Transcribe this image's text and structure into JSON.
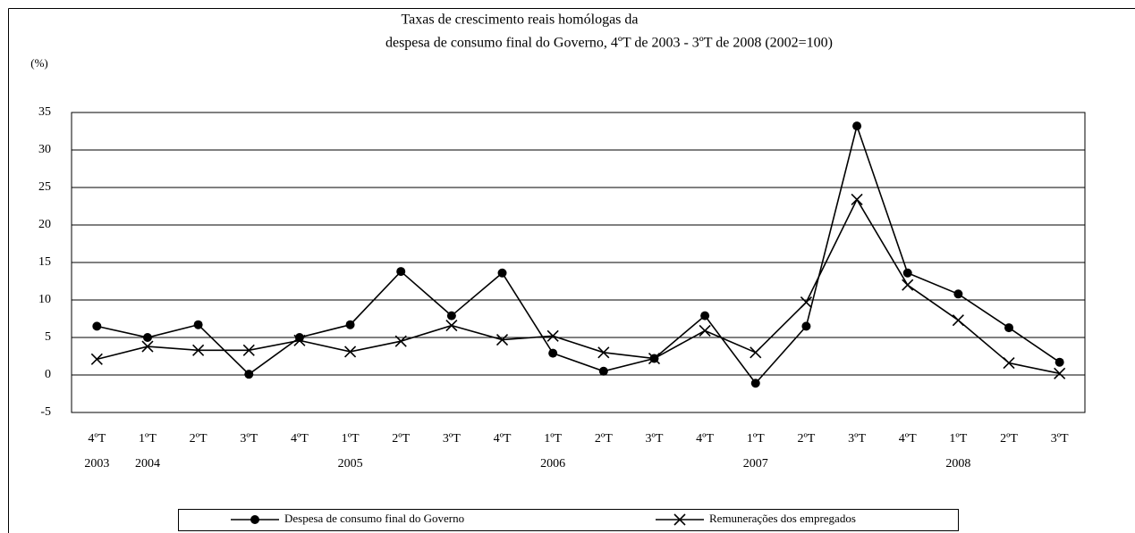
{
  "chart_data": {
    "type": "line",
    "title": "Taxas de crescimento reais homólogas da",
    "subtitle": "despesa de consumo final do Governo, 4ºT de 2003 - 3ºT de 2008 (2002=100)",
    "y_label": "(%)",
    "categories": [
      "4ºT",
      "1ºT",
      "2ºT",
      "3ºT",
      "4ºT",
      "1ºT",
      "2ºT",
      "3ºT",
      "4ºT",
      "1ºT",
      "2ºT",
      "3ºT",
      "4ºT",
      "1ºT",
      "2ºT",
      "3ºT",
      "4ºT",
      "1ºT",
      "2ºT",
      "3ºT"
    ],
    "year_labels": [
      "2003",
      "2004",
      null,
      null,
      null,
      "2005",
      null,
      null,
      null,
      "2006",
      null,
      null,
      null,
      "2007",
      null,
      null,
      null,
      "2008",
      null,
      null
    ],
    "series": [
      {
        "name": "Despesa de consumo final do Governo",
        "color": "#000000",
        "marker": "circle",
        "values": [
          6.5,
          5.0,
          6.7,
          0.1,
          5.0,
          6.7,
          13.8,
          7.9,
          13.6,
          2.9,
          0.5,
          2.2,
          7.9,
          -1.1,
          6.5,
          33.2,
          13.6,
          10.8,
          6.3,
          1.7
        ]
      },
      {
        "name": "Remunerações dos empregados",
        "color": "#000000",
        "marker": "x",
        "values": [
          2.1,
          3.8,
          3.3,
          3.3,
          4.6,
          3.1,
          4.5,
          6.6,
          4.7,
          5.2,
          3.0,
          2.2,
          5.9,
          3.0,
          9.7,
          23.4,
          12.0,
          7.3,
          1.6,
          0.2
        ]
      }
    ],
    "ylim": [
      -5,
      35
    ],
    "yticks": [
      -5,
      0,
      5,
      10,
      15,
      20,
      25,
      30,
      35
    ],
    "grid": true,
    "legend": "bottom"
  }
}
